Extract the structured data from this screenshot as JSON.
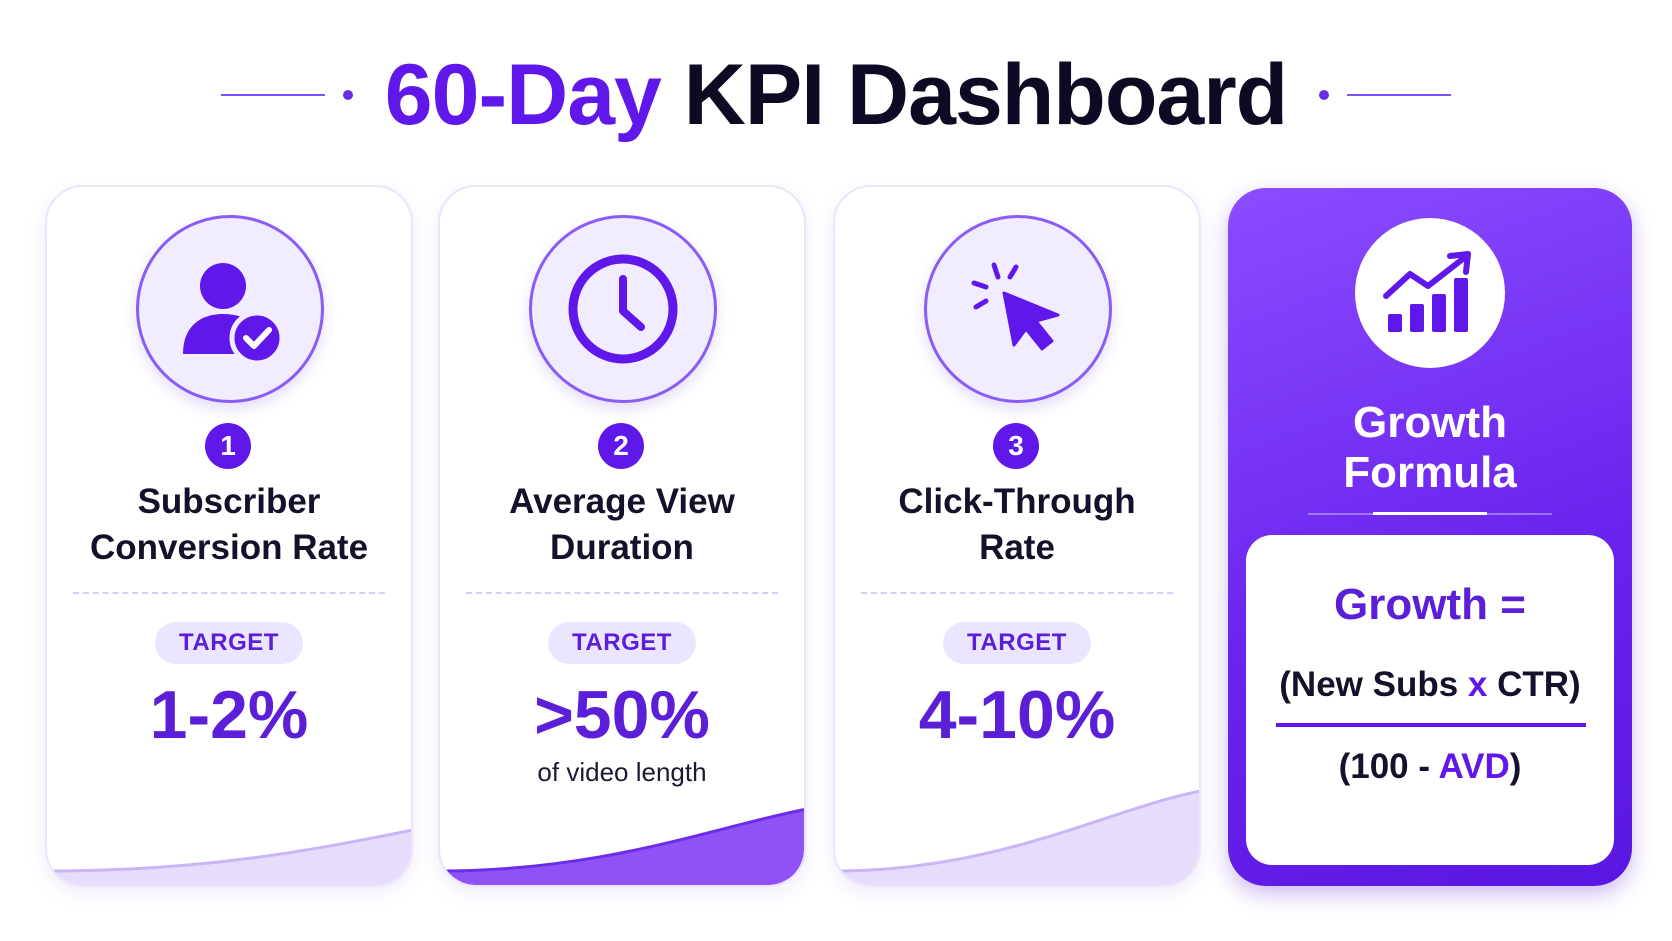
{
  "header": {
    "title_accent": "60-Day",
    "title_rest": " KPI Dashboard"
  },
  "cards": [
    {
      "number": "1",
      "icon": "user-check-icon",
      "title_line1": "Subscriber",
      "title_line2": "Conversion Rate",
      "target_label": "TARGET",
      "target_value": "1-2%",
      "progress_fraction": 0.42
    },
    {
      "number": "2",
      "icon": "clock-icon",
      "title_line1": "Average View",
      "title_line2": "Duration",
      "target_label": "TARGET",
      "target_value": ">50%",
      "target_note": "of video length",
      "progress_fraction": 0.58
    },
    {
      "number": "3",
      "icon": "cursor-click-icon",
      "title_line1": "Click-Through",
      "title_line2": "Rate",
      "target_label": "TARGET",
      "target_value": "4-10%",
      "progress_fraction": 0.72
    }
  ],
  "formula": {
    "icon": "growth-chart-icon",
    "heading_line1": "Growth",
    "heading_line2": "Formula",
    "lhs": "Growth =",
    "numerator_open": "(New Subs ",
    "numerator_op": "x",
    "numerator_close": " CTR)",
    "denominator_open": "(100 - ",
    "denominator_term": "AVD",
    "denominator_close": ")"
  },
  "colors": {
    "accent": "#5f17ea",
    "accent_light": "#ece5ff",
    "text_dark": "#15112a"
  }
}
